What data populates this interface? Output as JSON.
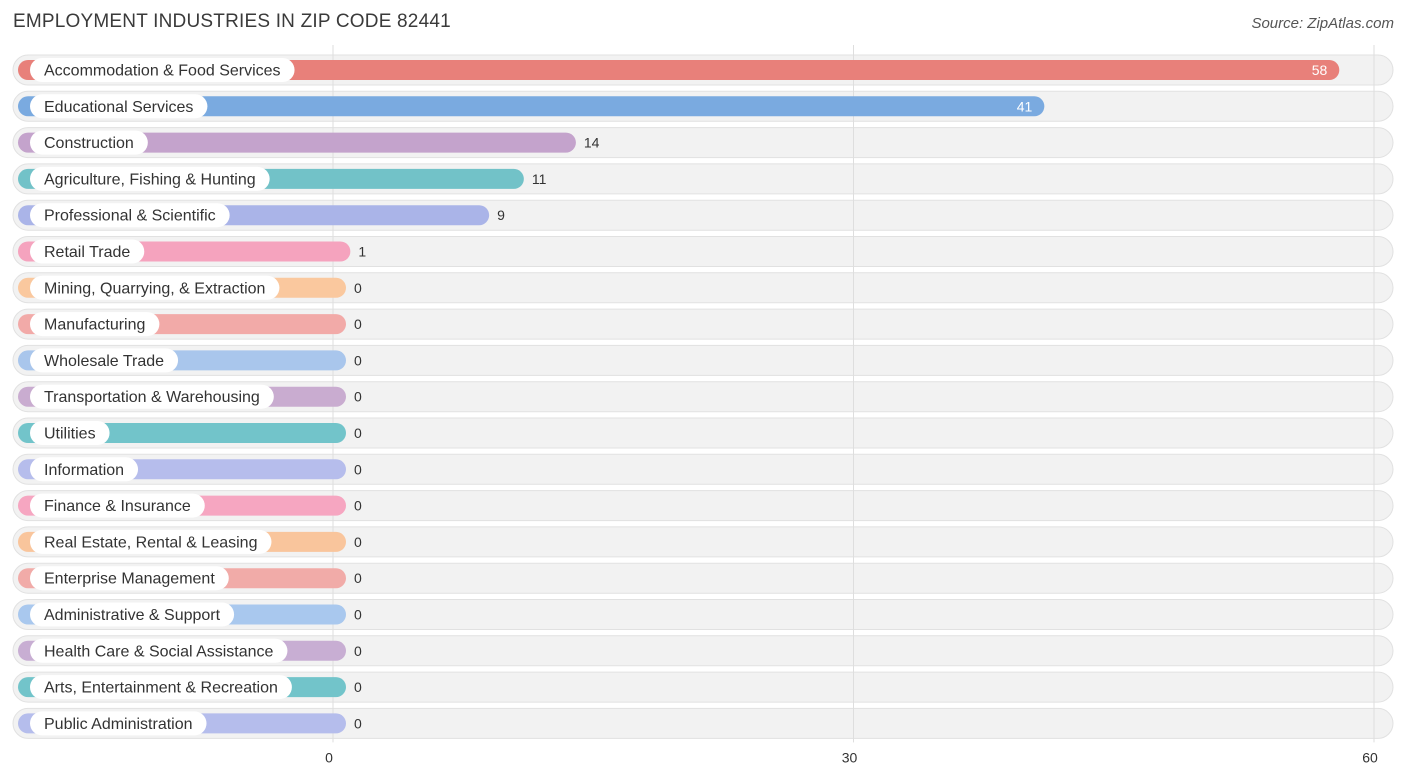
{
  "header": {
    "title": "EMPLOYMENT INDUSTRIES IN ZIP CODE 82441",
    "source": "Source: ZipAtlas.com"
  },
  "chart_data": {
    "type": "bar",
    "orientation": "horizontal",
    "title": "EMPLOYMENT INDUSTRIES IN ZIP CODE 82441",
    "xlabel": "",
    "ylabel": "",
    "xlim": [
      0,
      60
    ],
    "x_ticks": [
      0,
      30,
      60
    ],
    "grid": true,
    "categories": [
      "Accommodation & Food Services",
      "Educational Services",
      "Construction",
      "Agriculture, Fishing & Hunting",
      "Professional & Scientific",
      "Retail Trade",
      "Mining, Quarrying, & Extraction",
      "Manufacturing",
      "Wholesale Trade",
      "Transportation & Warehousing",
      "Utilities",
      "Information",
      "Finance & Insurance",
      "Real Estate, Rental & Leasing",
      "Enterprise Management",
      "Administrative & Support",
      "Health Care & Social Assistance",
      "Arts, Entertainment & Recreation",
      "Public Administration"
    ],
    "values": [
      58,
      41,
      14,
      11,
      9,
      1,
      0,
      0,
      0,
      0,
      0,
      0,
      0,
      0,
      0,
      0,
      0,
      0,
      0
    ],
    "value_labels": [
      "58",
      "41",
      "14",
      "11",
      "9",
      "1",
      "0",
      "0",
      "0",
      "0",
      "0",
      "0",
      "0",
      "0",
      "0",
      "0",
      "0",
      "0",
      "0"
    ],
    "colors": [
      "#e8807a",
      "#7aaae0",
      "#c4a3cc",
      "#72c2c8",
      "#aab4e8",
      "#f5a3be",
      "#fac89e",
      "#f2aaa8",
      "#a9c6ec",
      "#c9acd0",
      "#72c4ca",
      "#b6bdec",
      "#f6a6c1",
      "#f9c59c",
      "#f1aba8",
      "#a9c8ee",
      "#c8aed3",
      "#72c4ca",
      "#b5bdec"
    ]
  }
}
